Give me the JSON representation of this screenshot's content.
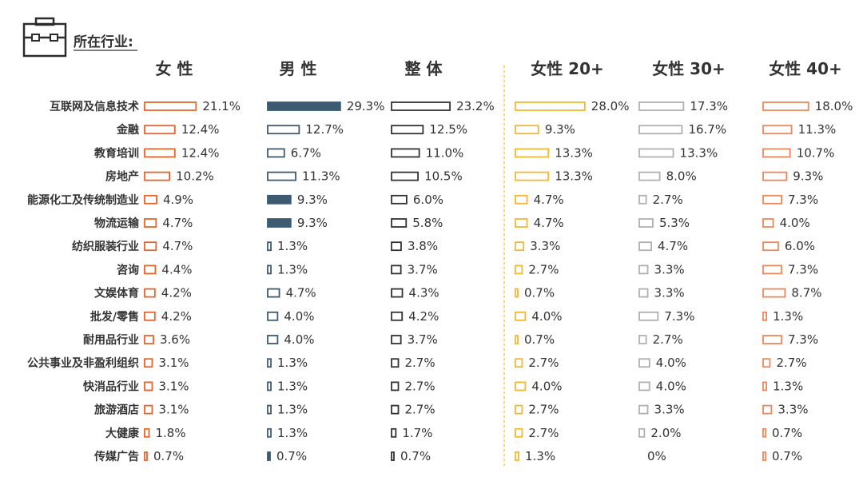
{
  "header": {
    "title": "所在行业:"
  },
  "chart_data": {
    "type": "bar",
    "orientation": "horizontal",
    "categories": [
      "互联网及信息技术",
      "金融",
      "教育培训",
      "房地产",
      "能源化工及传统制造业",
      "物流运输",
      "纺织服装行业",
      "咨询",
      "文娱体育",
      "批发/零售",
      "耐用品行业",
      "公共事业及非盈利组织",
      "快消品行业",
      "旅游酒店",
      "大健康",
      "传媒广告"
    ],
    "series": [
      {
        "name": "女 性",
        "color": "#e8642a",
        "style": "outline",
        "values": [
          "21.1%",
          "12.4%",
          "12.4%",
          "10.2%",
          "4.9%",
          "4.7%",
          "4.7%",
          "4.4%",
          "4.2%",
          "4.2%",
          "3.6%",
          "3.1%",
          "3.1%",
          "3.1%",
          "1.8%",
          "0.7%"
        ]
      },
      {
        "name": "男 性",
        "color": "#3d5a73",
        "style": "mixed",
        "values": [
          "29.3%",
          "12.7%",
          "6.7%",
          "11.3%",
          "9.3%",
          "9.3%",
          "1.3%",
          "1.3%",
          "4.7%",
          "4.0%",
          "4.0%",
          "1.3%",
          "1.3%",
          "1.3%",
          "1.3%",
          "0.7%"
        ]
      },
      {
        "name": "整 体",
        "color": "#333333",
        "style": "outline",
        "values": [
          "23.2%",
          "12.5%",
          "11.0%",
          "10.5%",
          "6.0%",
          "5.8%",
          "3.8%",
          "3.7%",
          "4.3%",
          "4.2%",
          "3.7%",
          "2.7%",
          "2.7%",
          "2.7%",
          "1.7%",
          "0.7%"
        ]
      },
      {
        "name": "女性 20+",
        "color": "#f5b730",
        "style": "outline",
        "values": [
          "28.0%",
          "9.3%",
          "13.3%",
          "13.3%",
          "4.7%",
          "4.7%",
          "3.3%",
          "2.7%",
          "0.7%",
          "4.0%",
          "0.7%",
          "2.7%",
          "4.0%",
          "2.7%",
          "2.7%",
          "1.3%"
        ]
      },
      {
        "name": "女性 30+",
        "color": "#b0b0b0",
        "style": "outline",
        "values": [
          "17.3%",
          "16.7%",
          "13.3%",
          "8.0%",
          "2.7%",
          "5.3%",
          "4.7%",
          "3.3%",
          "3.3%",
          "7.3%",
          "2.7%",
          "4.0%",
          "4.0%",
          "3.3%",
          "2.0%",
          "0%"
        ]
      },
      {
        "name": "女性 40+",
        "color": "#f0875a",
        "style": "outline",
        "values": [
          "18.0%",
          "11.3%",
          "10.7%",
          "9.3%",
          "7.3%",
          "4.0%",
          "6.0%",
          "7.3%",
          "8.7%",
          "1.3%",
          "7.3%",
          "2.7%",
          "1.3%",
          "3.3%",
          "0.7%",
          "0.7%"
        ]
      }
    ],
    "filled_bars_series_male": [
      "互联网及信息技术",
      "能源化工及传统制造业",
      "物流运输",
      "传媒广告"
    ]
  }
}
